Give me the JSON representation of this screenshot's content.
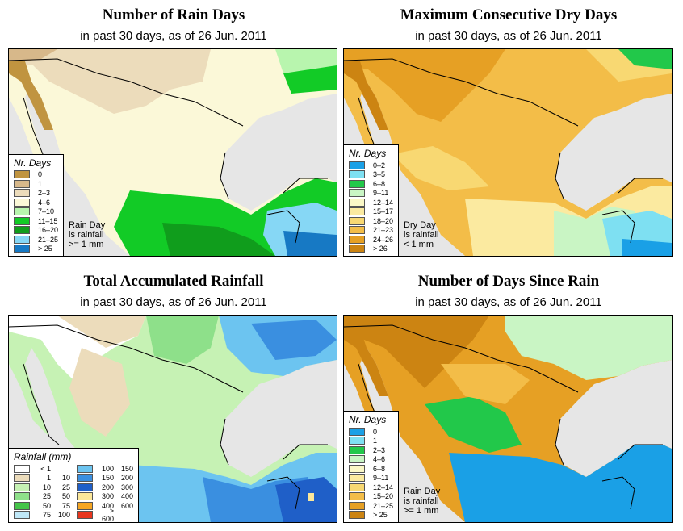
{
  "panels": [
    {
      "title": "Number of Rain Days",
      "subtitle": "in past 30 days, as of  26 Jun. 2011",
      "legend_title": "Nr. Days",
      "legend": [
        {
          "label": "0",
          "color": "#c09440"
        },
        {
          "label": "1",
          "color": "#d7b88a"
        },
        {
          "label": "2–3",
          "color": "#ecdcbb"
        },
        {
          "label": "4–6",
          "color": "#fbf8d8"
        },
        {
          "label": "7–10",
          "color": "#b8f5ae"
        },
        {
          "label": "11–15",
          "color": "#12cb26"
        },
        {
          "label": "16–20",
          "color": "#109d1c"
        },
        {
          "label": "21–25",
          "color": "#86d7f5"
        },
        {
          "label": "> 25",
          "color": "#1779c4"
        }
      ],
      "note": [
        "Rain Day",
        "is rainfall",
        ">= 1 mm"
      ]
    },
    {
      "title": "Maximum Consecutive Dry Days",
      "subtitle": "in past 30 days, as of  26 Jun. 2011",
      "legend_title": "Nr. Days",
      "legend": [
        {
          "label": "0–2",
          "color": "#1aa0e6"
        },
        {
          "label": "3–5",
          "color": "#7ee0f2"
        },
        {
          "label": "6–8",
          "color": "#22c84a"
        },
        {
          "label": "9–11",
          "color": "#c9f5c4"
        },
        {
          "label": "12–14",
          "color": "#fbf8c6"
        },
        {
          "label": "15–17",
          "color": "#fbeaa0"
        },
        {
          "label": "18–20",
          "color": "#f8d872"
        },
        {
          "label": "21–23",
          "color": "#f3bd48"
        },
        {
          "label": "24–26",
          "color": "#e6a024"
        },
        {
          "label": "> 26",
          "color": "#cc8412"
        }
      ],
      "note": [
        "Dry Day",
        "is rainfall",
        "< 1 mm"
      ]
    },
    {
      "title": "Total Accumulated Rainfall",
      "subtitle": "in past 30 days, as of  26 Jun. 2011",
      "legend_title": "Rainfall (mm)",
      "legend": [
        {
          "a": "< 1",
          "b": "",
          "color": "#ffffff"
        },
        {
          "a": "1",
          "b": "10",
          "color": "#ecdcbb"
        },
        {
          "a": "10",
          "b": "25",
          "color": "#c6f2b4"
        },
        {
          "a": "25",
          "b": "50",
          "color": "#8ee08a"
        },
        {
          "a": "50",
          "b": "75",
          "color": "#46c44a"
        },
        {
          "a": "75",
          "b": "100",
          "color": "#bfe8f8"
        },
        {
          "a": "100",
          "b": "150",
          "color": "#6cc4f0"
        },
        {
          "a": "150",
          "b": "200",
          "color": "#3a8fe0"
        },
        {
          "a": "200",
          "b": "300",
          "color": "#1f5fc8"
        },
        {
          "a": "300",
          "b": "400",
          "color": "#fbe79a"
        },
        {
          "a": "400",
          "b": "600",
          "color": "#f5a623"
        },
        {
          "a": "> 600",
          "b": "",
          "color": "#e8361e"
        }
      ],
      "note": []
    },
    {
      "title": "Number of Days Since Rain",
      "subtitle": "in past 30 days, as of  26 Jun. 2011",
      "legend_title": "Nr. Days",
      "legend": [
        {
          "label": "0",
          "color": "#1aa0e6"
        },
        {
          "label": "1",
          "color": "#7ee0f2"
        },
        {
          "label": "2–3",
          "color": "#22c84a"
        },
        {
          "label": "4–6",
          "color": "#c9f5c4"
        },
        {
          "label": "6–8",
          "color": "#fbf8c6"
        },
        {
          "label": "9–11",
          "color": "#fbeaa0"
        },
        {
          "label": "12–14",
          "color": "#f8d872"
        },
        {
          "label": "15–20",
          "color": "#f3bd48"
        },
        {
          "label": "21–25",
          "color": "#e6a024"
        },
        {
          "label": "> 25",
          "color": "#cc8412"
        }
      ],
      "note": [
        "Rain Day",
        "is rainfall",
        ">= 1 mm"
      ]
    }
  ],
  "colors": {
    "water": "#e6e6e6",
    "border": "#000000"
  }
}
